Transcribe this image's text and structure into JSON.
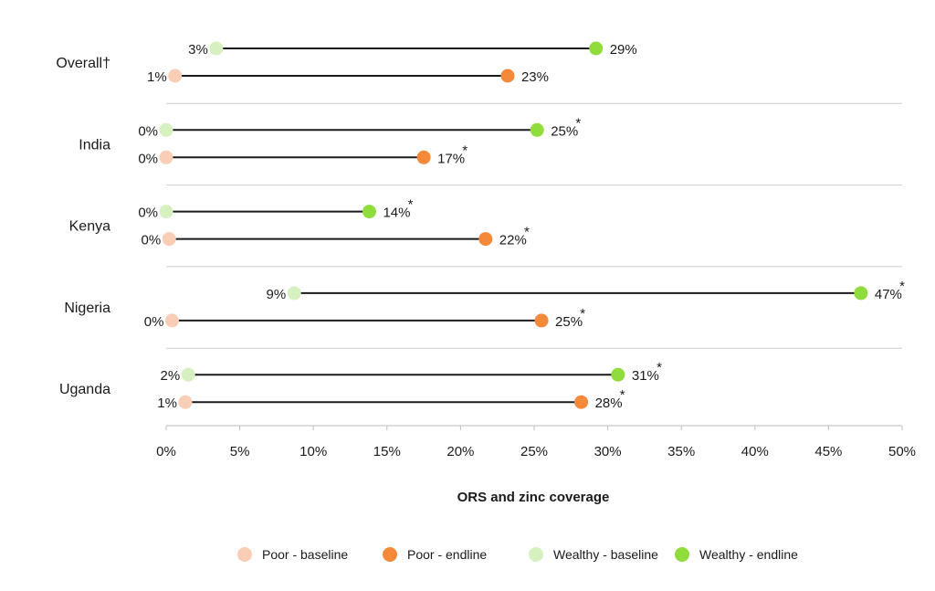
{
  "chart_data": {
    "type": "dumbbell",
    "xlabel": "ORS and zinc coverage",
    "xlim": [
      0,
      50
    ],
    "xticks": [
      "0%",
      "5%",
      "10%",
      "15%",
      "20%",
      "25%",
      "30%",
      "35%",
      "40%",
      "45%",
      "50%"
    ],
    "legend": {
      "placement": "bottom",
      "items": [
        "Poor - baseline",
        "Poor - endline",
        "Wealthy - baseline",
        "Wealthy - endline"
      ]
    },
    "colors": {
      "poor_baseline": "#f9cdb6",
      "poor_endline": "#f5893a",
      "wealthy_baseline": "#d6f0c0",
      "wealthy_endline": "#8fdc3c",
      "line": "#1a1a1a",
      "divider": "#cccccc"
    },
    "groups": [
      {
        "label": "Overall†",
        "rows": [
          {
            "series": "Wealthy",
            "baseline": 3.4,
            "endline": 29.2,
            "baseline_label": "3%",
            "endline_label": "29%",
            "significant": false
          },
          {
            "series": "Poor",
            "baseline": 0.6,
            "endline": 23.2,
            "baseline_label": "1%",
            "endline_label": "23%",
            "significant": false
          }
        ]
      },
      {
        "label": "India",
        "rows": [
          {
            "series": "Wealthy",
            "baseline": 0,
            "endline": 25.2,
            "baseline_label": "0%",
            "endline_label": "25%",
            "significant": true
          },
          {
            "series": "Poor",
            "baseline": 0,
            "endline": 17.5,
            "baseline_label": "0%",
            "endline_label": "17%",
            "significant": true
          }
        ]
      },
      {
        "label": "Kenya",
        "rows": [
          {
            "series": "Wealthy",
            "baseline": 0,
            "endline": 13.8,
            "baseline_label": "0%",
            "endline_label": "14%",
            "significant": true
          },
          {
            "series": "Poor",
            "baseline": 0.2,
            "endline": 21.7,
            "baseline_label": "0%",
            "endline_label": "22%",
            "significant": true
          }
        ]
      },
      {
        "label": "Nigeria",
        "rows": [
          {
            "series": "Wealthy",
            "baseline": 8.7,
            "endline": 47.2,
            "baseline_label": "9%",
            "endline_label": "47%",
            "significant": true
          },
          {
            "series": "Poor",
            "baseline": 0.4,
            "endline": 25.5,
            "baseline_label": "0%",
            "endline_label": "25%",
            "significant": true
          }
        ]
      },
      {
        "label": "Uganda",
        "rows": [
          {
            "series": "Wealthy",
            "baseline": 1.5,
            "endline": 30.7,
            "baseline_label": "2%",
            "endline_label": "31%",
            "significant": true
          },
          {
            "series": "Poor",
            "baseline": 1.3,
            "endline": 28.2,
            "baseline_label": "1%",
            "endline_label": "28%",
            "significant": true
          }
        ]
      }
    ]
  }
}
